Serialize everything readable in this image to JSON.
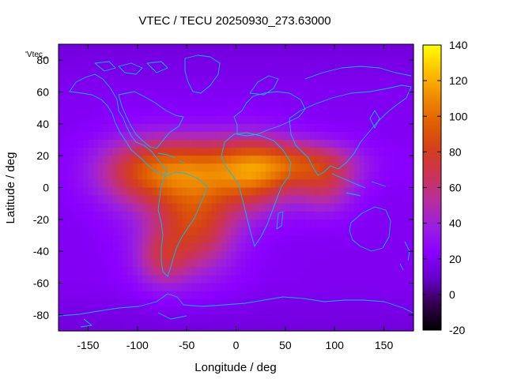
{
  "chart_data": {
    "type": "heatmap",
    "title": "VTEC / TECU 20250930_273.63000",
    "series_key": "'Vtec_",
    "xlabel": "Longitude / deg",
    "ylabel": "Latitude / deg",
    "xlim": [
      -180,
      180
    ],
    "ylim": [
      -90,
      90
    ],
    "xticks": [
      -150,
      -100,
      -50,
      0,
      50,
      100,
      150
    ],
    "yticks": [
      80,
      60,
      40,
      20,
      0,
      -20,
      -40,
      -60,
      -80
    ],
    "colorbar": {
      "min": -20,
      "max": 140,
      "ticks": [
        140,
        120,
        100,
        80,
        60,
        40,
        20,
        0,
        -20
      ],
      "palette": [
        "#000000",
        "#33004d",
        "#6600cc",
        "#8b00ff",
        "#9b1fe0",
        "#b82e9d",
        "#cc3355",
        "#d43f1a",
        "#e06000",
        "#f08c00",
        "#ffc200",
        "#ffff00"
      ]
    },
    "grid": false,
    "coastline_color": "#00bfff",
    "grid_resolution_deg": [
      5,
      5
    ],
    "background_value": 20,
    "enhancements": [
      {
        "lon": -35,
        "lat": 12,
        "peak": 55,
        "sx": 45,
        "sy": 14
      },
      {
        "lon": -95,
        "lat": 10,
        "peak": 45,
        "sx": 35,
        "sy": 15
      },
      {
        "lon": -40,
        "lat": -22,
        "peak": 48,
        "sx": 28,
        "sy": 20
      },
      {
        "lon": 20,
        "lat": 8,
        "peak": 52,
        "sx": 28,
        "sy": 16
      },
      {
        "lon": 70,
        "lat": 15,
        "peak": 48,
        "sx": 38,
        "sy": 10
      },
      {
        "lon": 90,
        "lat": 0,
        "peak": 32,
        "sx": 22,
        "sy": 12
      },
      {
        "lon": -75,
        "lat": -45,
        "peak": 30,
        "sx": 18,
        "sy": 12
      },
      {
        "lon": -60,
        "lat": -25,
        "peak": 15,
        "sx": 40,
        "sy": 25
      }
    ]
  }
}
